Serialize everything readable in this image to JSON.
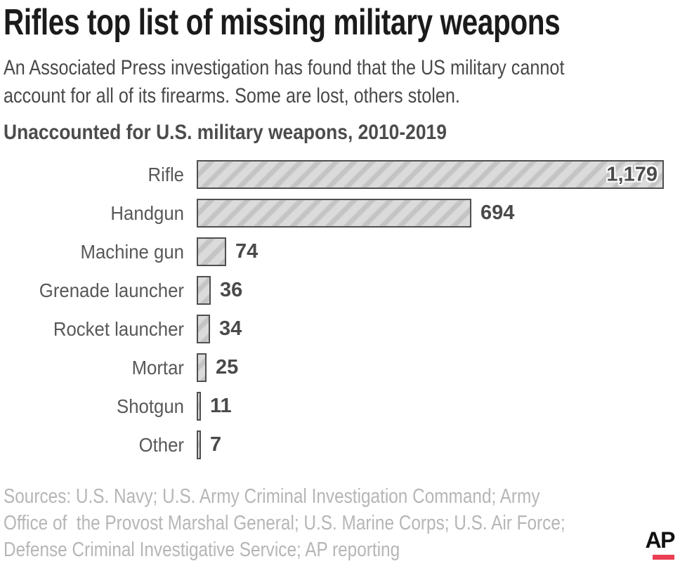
{
  "header": {
    "title": "Rifles top list of missing military weapons",
    "subtitle_lines": [
      "An Associated Press investigation has found that the US military cannot",
      "account for all of its firearms. Some are lost, others stolen."
    ]
  },
  "chart_data": {
    "type": "bar",
    "orientation": "horizontal",
    "title": "Unaccounted for U.S. military weapons, 2010-2019",
    "categories": [
      "Rifle",
      "Handgun",
      "Machine gun",
      "Grenade launcher",
      "Rocket launcher",
      "Mortar",
      "Shotgun",
      "Other"
    ],
    "values": [
      1179,
      694,
      74,
      36,
      34,
      25,
      11,
      7
    ],
    "value_labels": [
      "1,179",
      "694",
      "74",
      "36",
      "34",
      "25",
      "11",
      "7"
    ],
    "xlim": [
      0,
      1179
    ],
    "grid": false,
    "legend": false,
    "value_label_placement": [
      "inside",
      "outside",
      "outside",
      "outside",
      "outside",
      "outside",
      "outside",
      "outside"
    ],
    "colors": {
      "bar_fill": "#dbdbdb",
      "bar_stripe": "#c4c4c4",
      "bar_border": "#4f4f4f",
      "value_text": "#4a4a4a",
      "category_text": "#585858"
    }
  },
  "footer": {
    "source_lines": [
      "Sources: U.S. Navy; U.S. Army Criminal Investigation Command; Army",
      "Office of  the Provost Marshal General; U.S. Marine Corps; U.S. Air Force;",
      "Defense Criminal Investigative Service; AP reporting"
    ],
    "logo": {
      "text": "AP",
      "text_color": "#111111",
      "bar_color": "#ea3e52"
    }
  }
}
